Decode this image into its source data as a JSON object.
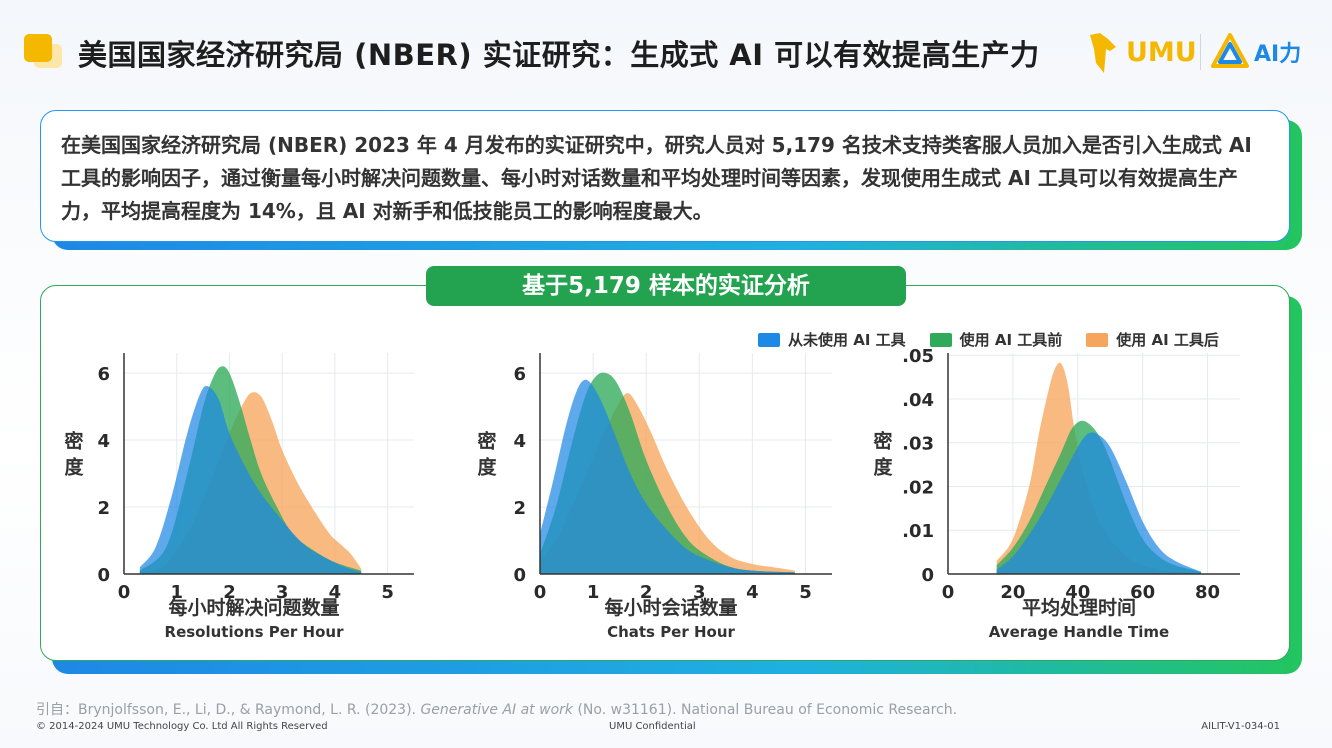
{
  "title": "美国国家经济研究局 (NBER) 实证研究：生成式 AI 可以有效提高生产力",
  "logos": {
    "umu": "UMU",
    "ai": "AI力"
  },
  "intro": "在美国国家经济研究局 (NBER) 2023 年 4 月发布的实证研究中，研究人员对 5,179 名技术支持类客服人员加入是否引入生成式 AI 工具的影响因子，通过衡量每小时解决问题数量、每小时对话数量和平均处理时间等因素，发现使用生成式 AI 工具可以有效提高生产力，平均提高程度为 14%，且 AI 对新手和低技能员工的影响程度最大。",
  "section_title": "基于5,179 样本的实证分析",
  "legend": [
    {
      "label": "从未使用 AI 工具",
      "color": "#1e88e5"
    },
    {
      "label": "使用 AI 工具前",
      "color": "#2eaa5a"
    },
    {
      "label": "使用 AI 工具后",
      "color": "#f6a65c"
    }
  ],
  "citation": {
    "prefix": "引自：Bryn­jolfsson, E., Li, D., & Raymond, L. R. (2023). ",
    "work": "Generative AI at work",
    "suffix": " (No. w31161). National Bureau of Economic Research."
  },
  "footer": {
    "copyright": "© 2014-2024 UMU Technology Co. Ltd All Rights Reserved",
    "confidential": "UMU Confidential",
    "code": "AILIT-V1-034-01"
  },
  "chart_data": [
    {
      "type": "area",
      "ylabel": "密度",
      "xlabel": "每小时解决问题数量",
      "xlabel_en": "Resolutions Per Hour",
      "xlim": [
        0,
        5.5
      ],
      "ylim": [
        0,
        6.6
      ],
      "xticks": [
        "0",
        "1",
        "2",
        "3",
        "4",
        "5"
      ],
      "xtick_values": [
        0,
        1,
        2,
        3,
        4,
        5
      ],
      "yticks": [
        "0",
        "2",
        "4",
        "6"
      ],
      "ytick_values": [
        0,
        2,
        4,
        6
      ],
      "series": [
        {
          "name": "使用 AI 工具后",
          "color": "#f6a65c",
          "x": [
            0.3,
            0.8,
            1.3,
            1.7,
            2.0,
            2.2,
            2.4,
            2.6,
            2.8,
            3.0,
            3.3,
            3.6,
            3.9,
            4.1,
            4.3,
            4.5
          ],
          "y": [
            0.05,
            0.3,
            1.5,
            3.0,
            4.2,
            4.9,
            5.4,
            5.3,
            4.6,
            3.7,
            2.7,
            1.9,
            1.2,
            0.9,
            0.6,
            0.15
          ]
        },
        {
          "name": "使用 AI 工具前",
          "color": "#2eaa5a",
          "x": [
            0.3,
            0.8,
            1.2,
            1.5,
            1.7,
            1.85,
            2.0,
            2.2,
            2.4,
            2.6,
            2.9,
            3.2,
            3.6,
            4.0,
            4.5
          ],
          "y": [
            0.1,
            0.8,
            3.0,
            5.0,
            5.9,
            6.2,
            6.0,
            5.1,
            4.0,
            3.0,
            2.0,
            1.2,
            0.7,
            0.35,
            0.1
          ]
        },
        {
          "name": "从未使用 AI 工具",
          "color": "#1e88e5",
          "x": [
            0.3,
            0.6,
            0.9,
            1.2,
            1.45,
            1.6,
            1.8,
            2.0,
            2.3,
            2.6,
            3.0,
            3.4,
            3.8,
            4.2,
            4.5
          ],
          "y": [
            0.2,
            0.8,
            2.3,
            4.2,
            5.4,
            5.6,
            5.2,
            4.2,
            3.2,
            2.4,
            1.6,
            0.9,
            0.5,
            0.2,
            0.05
          ]
        }
      ]
    },
    {
      "type": "area",
      "ylabel": "密度",
      "xlabel": "每小时会话数量",
      "xlabel_en": "Chats Per Hour",
      "xlim": [
        0,
        5.5
      ],
      "ylim": [
        0,
        6.6
      ],
      "xticks": [
        "0",
        "1",
        "2",
        "3",
        "4",
        "5"
      ],
      "xtick_values": [
        0,
        1,
        2,
        3,
        4,
        5
      ],
      "yticks": [
        "0",
        "2",
        "4",
        "6"
      ],
      "ytick_values": [
        0,
        2,
        4,
        6
      ],
      "series": [
        {
          "name": "使用 AI 工具后",
          "color": "#f6a65c",
          "x": [
            0.0,
            0.3,
            0.6,
            0.9,
            1.2,
            1.45,
            1.65,
            1.85,
            2.1,
            2.4,
            2.8,
            3.2,
            3.6,
            4.0,
            4.4,
            4.8
          ],
          "y": [
            0.4,
            1.0,
            2.0,
            3.1,
            4.2,
            5.0,
            5.4,
            5.0,
            4.2,
            3.1,
            1.9,
            1.0,
            0.5,
            0.3,
            0.2,
            0.1
          ]
        },
        {
          "name": "使用 AI 工具前",
          "color": "#2eaa5a",
          "x": [
            0.0,
            0.3,
            0.6,
            0.85,
            1.05,
            1.25,
            1.45,
            1.7,
            2.0,
            2.4,
            2.8,
            3.2,
            3.6,
            4.0,
            4.8
          ],
          "y": [
            0.6,
            2.0,
            3.9,
            5.3,
            5.9,
            6.0,
            5.7,
            4.8,
            3.4,
            2.0,
            1.0,
            0.5,
            0.2,
            0.1,
            0.05
          ]
        },
        {
          "name": "从未使用 AI 工具",
          "color": "#1e88e5",
          "x": [
            0.0,
            0.25,
            0.5,
            0.7,
            0.85,
            1.0,
            1.2,
            1.45,
            1.7,
            2.0,
            2.4,
            2.8,
            3.2,
            3.6,
            4.0,
            4.8
          ],
          "y": [
            1.2,
            2.8,
            4.5,
            5.5,
            5.8,
            5.6,
            5.0,
            4.0,
            3.0,
            2.1,
            1.3,
            0.7,
            0.4,
            0.2,
            0.1,
            0.05
          ]
        }
      ]
    },
    {
      "type": "area",
      "ylabel": "密度",
      "xlabel": "平均处理时间",
      "xlabel_en": "Average Handle Time",
      "xlim": [
        0,
        90
      ],
      "ylim": [
        0,
        0.0505
      ],
      "xticks": [
        "0",
        "20",
        "40",
        "60",
        "80"
      ],
      "xtick_values": [
        0,
        20,
        40,
        60,
        80
      ],
      "yticks": [
        "0",
        ".01",
        ".02",
        ".03",
        ".04",
        ".05"
      ],
      "ytick_values": [
        0,
        0.01,
        0.02,
        0.03,
        0.04,
        0.05
      ],
      "series": [
        {
          "name": "使用 AI 工具后",
          "color": "#f6a65c",
          "x": [
            15,
            20,
            25,
            28,
            31,
            33,
            35,
            37,
            39,
            42,
            46,
            50,
            55,
            60,
            65,
            70,
            78
          ],
          "y": [
            0.003,
            0.008,
            0.02,
            0.032,
            0.042,
            0.047,
            0.048,
            0.043,
            0.033,
            0.022,
            0.013,
            0.008,
            0.004,
            0.002,
            0.001,
            0.0005,
            0.0002
          ]
        },
        {
          "name": "使用 AI 工具前",
          "color": "#2eaa5a",
          "x": [
            15,
            20,
            25,
            30,
            35,
            38,
            41,
            44,
            47,
            50,
            55,
            60,
            65,
            70,
            78
          ],
          "y": [
            0.002,
            0.006,
            0.012,
            0.02,
            0.028,
            0.033,
            0.035,
            0.034,
            0.031,
            0.026,
            0.016,
            0.008,
            0.004,
            0.002,
            0.0005
          ]
        },
        {
          "name": "从未使用 AI 工具",
          "color": "#1e88e5",
          "x": [
            15,
            20,
            25,
            30,
            35,
            40,
            43,
            46,
            50,
            55,
            60,
            65,
            70,
            78
          ],
          "y": [
            0.001,
            0.004,
            0.009,
            0.015,
            0.022,
            0.029,
            0.032,
            0.032,
            0.029,
            0.021,
            0.012,
            0.006,
            0.003,
            0.0005
          ]
        }
      ]
    }
  ]
}
